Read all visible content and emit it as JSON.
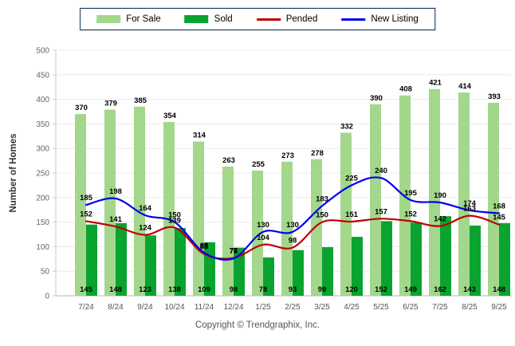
{
  "legend": {
    "border_color": "#17375E",
    "items": [
      {
        "label": "For Sale",
        "type": "bar",
        "color": "#A3D78C"
      },
      {
        "label": "Sold",
        "type": "bar",
        "color": "#09A42F"
      },
      {
        "label": "Pended",
        "type": "line",
        "color": "#C00000"
      },
      {
        "label": "New Listing",
        "type": "line",
        "color": "#0000EE"
      }
    ]
  },
  "chart_data": {
    "type": "bar",
    "subtype": "combo-bar-line",
    "title": "",
    "xlabel": "",
    "ylabel": "Number of Homes",
    "ylim": [
      0,
      500
    ],
    "ytick_step": 50,
    "grid": true,
    "legend_position": "top-center",
    "categories": [
      "7/24",
      "8/24",
      "9/24",
      "10/24",
      "11/24",
      "12/24",
      "1/25",
      "2/25",
      "3/25",
      "4/25",
      "5/25",
      "6/25",
      "7/25",
      "8/25",
      "9/25"
    ],
    "series": [
      {
        "name": "For Sale",
        "type": "bar",
        "color": "#A3D78C",
        "values": [
          370,
          379,
          385,
          354,
          314,
          263,
          255,
          273,
          278,
          332,
          390,
          408,
          421,
          414,
          393
        ]
      },
      {
        "name": "Sold",
        "type": "bar",
        "color": "#09A42F",
        "values": [
          145,
          148,
          123,
          138,
          109,
          98,
          78,
          93,
          99,
          120,
          152,
          149,
          162,
          143,
          148
        ]
      },
      {
        "name": "Pended",
        "type": "line",
        "color": "#C00000",
        "values": [
          152,
          141,
          124,
          139,
          85,
          77,
          104,
          98,
          150,
          151,
          157,
          152,
          142,
          163,
          145
        ]
      },
      {
        "name": "New Listing",
        "type": "line",
        "color": "#0000EE",
        "values": [
          185,
          198,
          164,
          150,
          88,
          76,
          130,
          130,
          183,
          225,
          240,
          195,
          190,
          174,
          168
        ]
      }
    ]
  },
  "footer": {
    "copyright": "Copyright © Trendgraphix, Inc."
  }
}
